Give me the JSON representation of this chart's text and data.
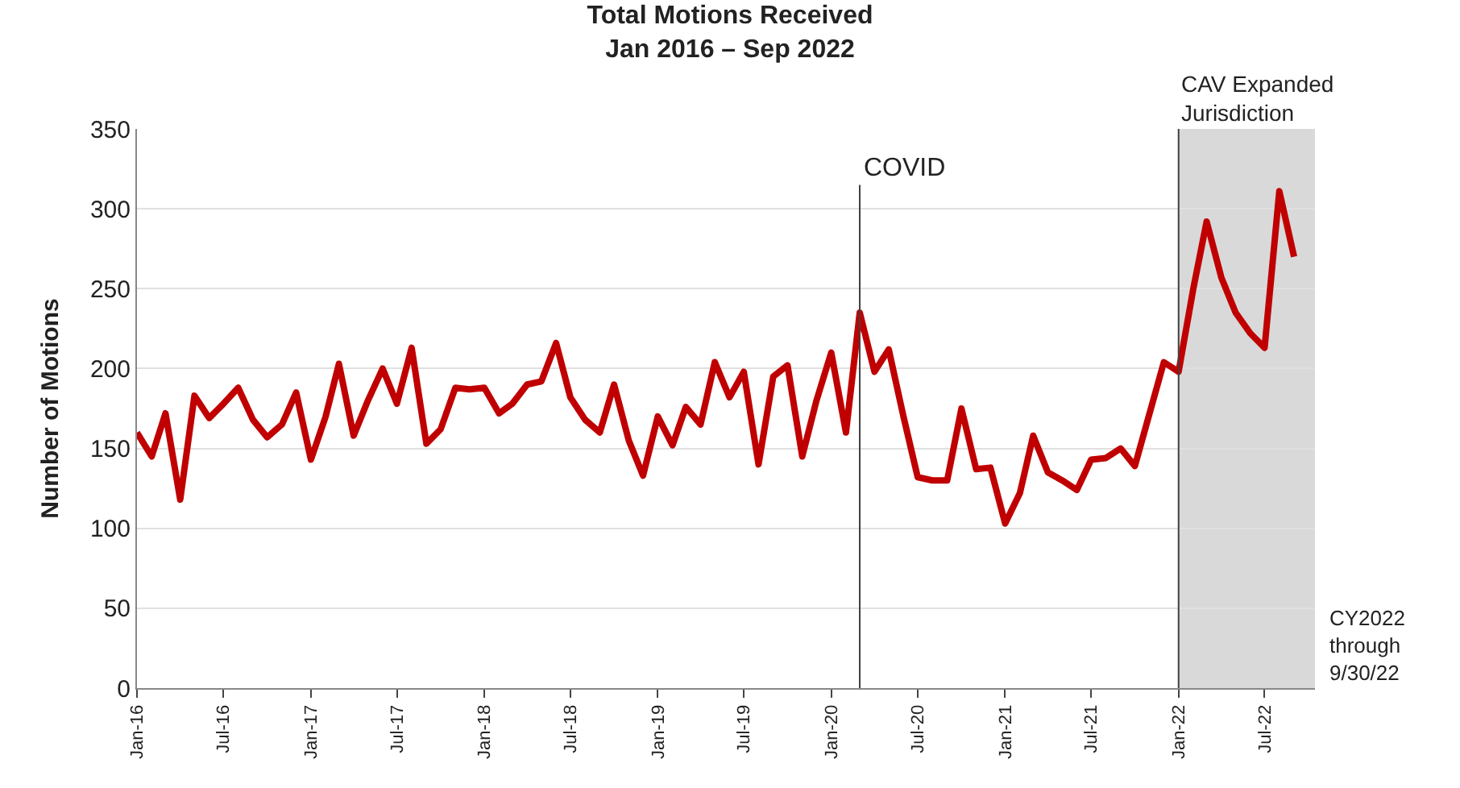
{
  "chart_data": {
    "type": "line",
    "title": "Total Motions Received\nJan 2016 – Sep 2022",
    "ylabel": "Number of Motions",
    "x": [
      "2016-01",
      "2016-02",
      "2016-03",
      "2016-04",
      "2016-05",
      "2016-06",
      "2016-07",
      "2016-08",
      "2016-09",
      "2016-10",
      "2016-11",
      "2016-12",
      "2017-01",
      "2017-02",
      "2017-03",
      "2017-04",
      "2017-05",
      "2017-06",
      "2017-07",
      "2017-08",
      "2017-09",
      "2017-10",
      "2017-11",
      "2017-12",
      "2018-01",
      "2018-02",
      "2018-03",
      "2018-04",
      "2018-05",
      "2018-06",
      "2018-07",
      "2018-08",
      "2018-09",
      "2018-10",
      "2018-11",
      "2018-12",
      "2019-01",
      "2019-02",
      "2019-03",
      "2019-04",
      "2019-05",
      "2019-06",
      "2019-07",
      "2019-08",
      "2019-09",
      "2019-10",
      "2019-11",
      "2019-12",
      "2020-01",
      "2020-02",
      "2020-03",
      "2020-04",
      "2020-05",
      "2020-06",
      "2020-07",
      "2020-08",
      "2020-09",
      "2020-10",
      "2020-11",
      "2020-12",
      "2021-01",
      "2021-02",
      "2021-03",
      "2021-04",
      "2021-05",
      "2021-06",
      "2021-07",
      "2021-08",
      "2021-09",
      "2021-10",
      "2021-11",
      "2021-12",
      "2022-01",
      "2022-02",
      "2022-03",
      "2022-04",
      "2022-05",
      "2022-06",
      "2022-07",
      "2022-08",
      "2022-09"
    ],
    "series": [
      {
        "color": "#c00000",
        "values": [
          160,
          145,
          172,
          118,
          183,
          169,
          178,
          188,
          168,
          157,
          165,
          185,
          143,
          170,
          203,
          158,
          180,
          200,
          178,
          213,
          153,
          162,
          188,
          187,
          188,
          172,
          178,
          190,
          192,
          216,
          182,
          168,
          160,
          190,
          155,
          133,
          170,
          152,
          176,
          165,
          204,
          182,
          198,
          140,
          195,
          202,
          145,
          180,
          210,
          160,
          235,
          198,
          212,
          170,
          132,
          130,
          130,
          175,
          137,
          138,
          103,
          122,
          158,
          135,
          130,
          124,
          143,
          144,
          150,
          139,
          172,
          204,
          198,
          250,
          292,
          257,
          235,
          222,
          213,
          311,
          270
        ]
      }
    ],
    "xlim": [
      "2016-01",
      "2022-10-15"
    ],
    "ylim": [
      0,
      350
    ],
    "yticks": [
      0,
      50,
      100,
      150,
      200,
      250,
      300,
      350
    ],
    "xticks": [
      {
        "value": "2016-01",
        "label": "Jan-16"
      },
      {
        "value": "2016-07",
        "label": "Jul-16"
      },
      {
        "value": "2017-01",
        "label": "Jan-17"
      },
      {
        "value": "2017-07",
        "label": "Jul-17"
      },
      {
        "value": "2018-01",
        "label": "Jan-18"
      },
      {
        "value": "2018-07",
        "label": "Jul-18"
      },
      {
        "value": "2019-01",
        "label": "Jan-19"
      },
      {
        "value": "2019-07",
        "label": "Jul-19"
      },
      {
        "value": "2020-01",
        "label": "Jan-20"
      },
      {
        "value": "2020-07",
        "label": "Jul-20"
      },
      {
        "value": "2021-01",
        "label": "Jan-21"
      },
      {
        "value": "2021-07",
        "label": "Jul-21"
      },
      {
        "value": "2022-01",
        "label": "Jan-22"
      },
      {
        "value": "2022-07",
        "label": "Jul-22"
      }
    ],
    "ref_lines": [
      {
        "axis": "x",
        "value": "2020-03",
        "label": "COVID",
        "color": "#404040"
      },
      {
        "axis": "x",
        "value": "2022-01",
        "color": "#404040"
      }
    ],
    "bands": [
      {
        "axis": "x",
        "from": "2022-01",
        "to": "2022-10-15",
        "label": "CAV Expanded\nJurisdiction",
        "color": "#d9d9d9"
      }
    ],
    "annotations": [
      "CY2022\nthrough\n9/30/22"
    ],
    "grid": "y",
    "legend": false,
    "marker": "none",
    "line_style": "solid"
  }
}
